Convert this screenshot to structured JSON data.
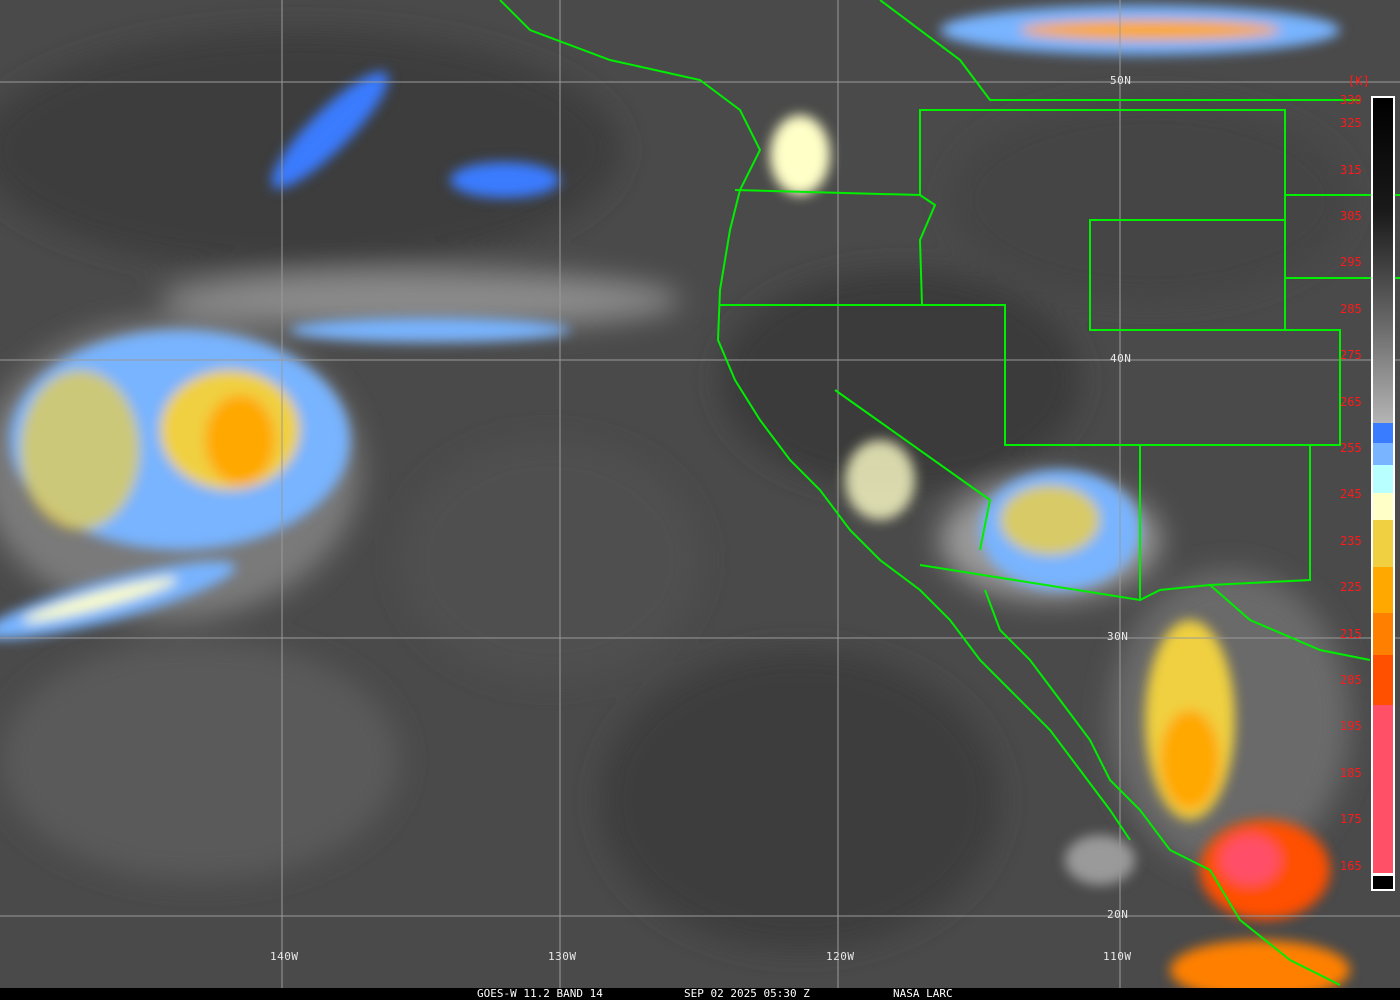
{
  "caption": {
    "satellite": "GOES-W 11.2 BAND 14",
    "datetime": "SEP 02 2025 05:30 Z",
    "credit": "NASA LARC"
  },
  "colorbar": {
    "unit": "[K]",
    "ticks": [
      "330",
      "325",
      "315",
      "305",
      "295",
      "285",
      "275",
      "265",
      "255",
      "245",
      "235",
      "225",
      "215",
      "205",
      "195",
      "185",
      "175",
      "165"
    ],
    "colors": {
      "cold_blue": "#3a7cff",
      "light_blue": "#78b4ff",
      "cyan": "#b8ffff",
      "pale_yellow": "#ffffc8",
      "yellow": "#f0d040",
      "orange": "#ffa800",
      "dark_orange": "#ff8000",
      "red_orange": "#ff5000",
      "pink": "#ff5068"
    }
  },
  "grid": {
    "longitudes": [
      "140W",
      "130W",
      "120W",
      "110W"
    ],
    "latitudes": [
      "50N",
      "40N",
      "30N",
      "20N"
    ]
  },
  "overlay_color": "#00ff00"
}
